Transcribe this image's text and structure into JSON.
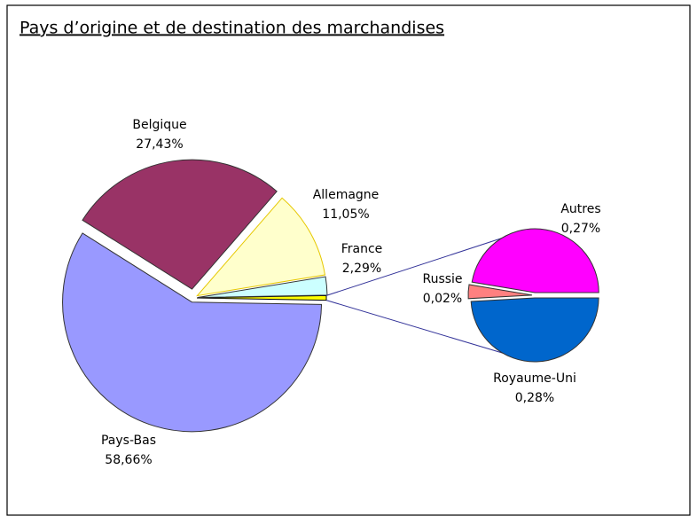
{
  "chart_data": {
    "type": "pie-of-pie",
    "title": "Pays d’origine et de destination des marchandises",
    "categories": [
      "Pays-Bas",
      "Belgique",
      "Allemagne",
      "France"
    ],
    "values": [
      58.66,
      27.43,
      11.05,
      2.29
    ],
    "value_labels": [
      "58,66%",
      "27,43%",
      "11,05%",
      "2,29%"
    ],
    "colors": [
      "#9999ff",
      "#993366",
      "#ffffcc",
      "#ccffff"
    ],
    "other_color": "#ffff00",
    "sub": {
      "categories": [
        "Autres",
        "Russie",
        "Royaume-Uni"
      ],
      "values": [
        0.27,
        0.02,
        0.28
      ],
      "value_labels": [
        "0,27%",
        "0,02%",
        "0,28%"
      ],
      "colors": [
        "#ff00ff",
        "#ff8080",
        "#0066cc"
      ]
    }
  }
}
